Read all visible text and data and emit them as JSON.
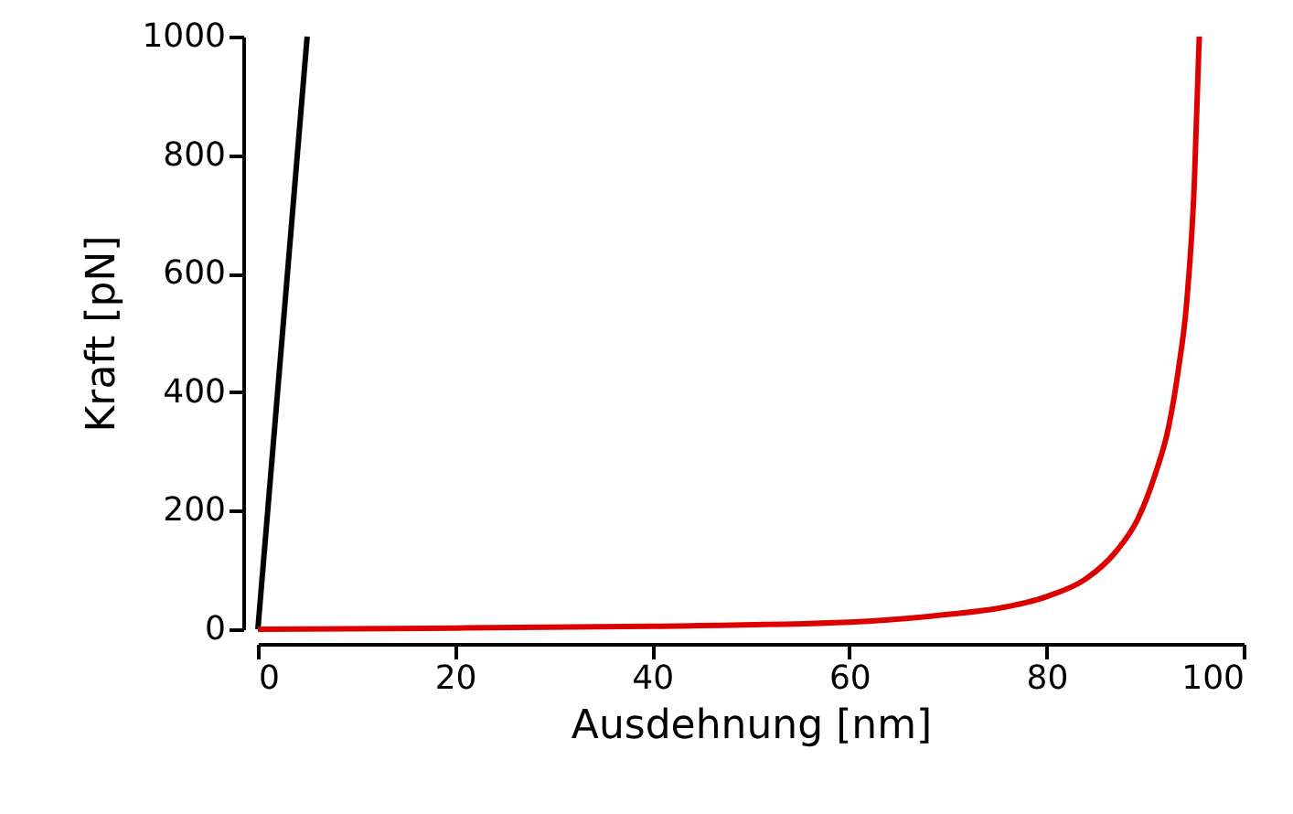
{
  "chart_data": {
    "type": "line",
    "xlabel": "Ausdehnung [nm]",
    "ylabel": "Kraft [pN]",
    "xlim": [
      0,
      100
    ],
    "ylim": [
      0,
      1000
    ],
    "xticks": [
      0,
      20,
      40,
      60,
      80,
      100
    ],
    "yticks": [
      0,
      200,
      400,
      600,
      800,
      1000
    ],
    "grid": false,
    "marker": "none",
    "line_style": "solid",
    "series": [
      {
        "color": "#000000",
        "x": [
          0,
          5
        ],
        "values": [
          0,
          1000
        ]
      },
      {
        "color": "#dd0000",
        "x": [
          0,
          20,
          40,
          60,
          70,
          75,
          80,
          84,
          87,
          89.3,
          91,
          92.4,
          93.4,
          94.2,
          95,
          95.5
        ],
        "values": [
          0,
          2,
          5,
          12,
          25,
          35,
          55,
          85,
          130,
          187,
          260,
          342,
          440,
          547,
          753,
          1000
        ]
      }
    ]
  }
}
